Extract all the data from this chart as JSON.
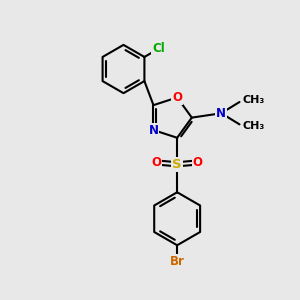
{
  "background_color": "#e8e8e8",
  "atom_colors": {
    "C": "#000000",
    "N": "#0000cc",
    "O": "#ff0000",
    "S": "#ccaa00",
    "Cl": "#00aa00",
    "Br": "#cc6600"
  },
  "bond_color": "#000000",
  "bond_width": 1.5
}
